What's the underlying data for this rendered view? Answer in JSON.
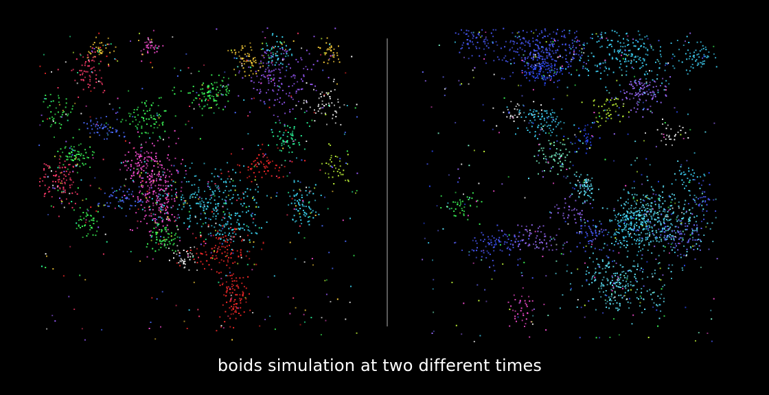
{
  "caption": "boids simulation at two different times",
  "snapshots": [
    {
      "seed": 11,
      "palette": [
        "#ff3b6b",
        "#ff4fd8",
        "#3dff5a",
        "#4a6bff",
        "#ff2a2a",
        "#9b5bff",
        "#3fe0ff",
        "#c8ff3a",
        "#ffffff",
        "#ffd23a",
        "#2bff9e"
      ]
    },
    {
      "seed": 29,
      "palette": [
        "#4a5bff",
        "#6a6bff",
        "#3fd8ff",
        "#5fe8ff",
        "#9b6bff",
        "#3dff5a",
        "#c8ff3a",
        "#ffffff",
        "#ff4fd8",
        "#7fffd0",
        "#2b4bff"
      ]
    }
  ]
}
